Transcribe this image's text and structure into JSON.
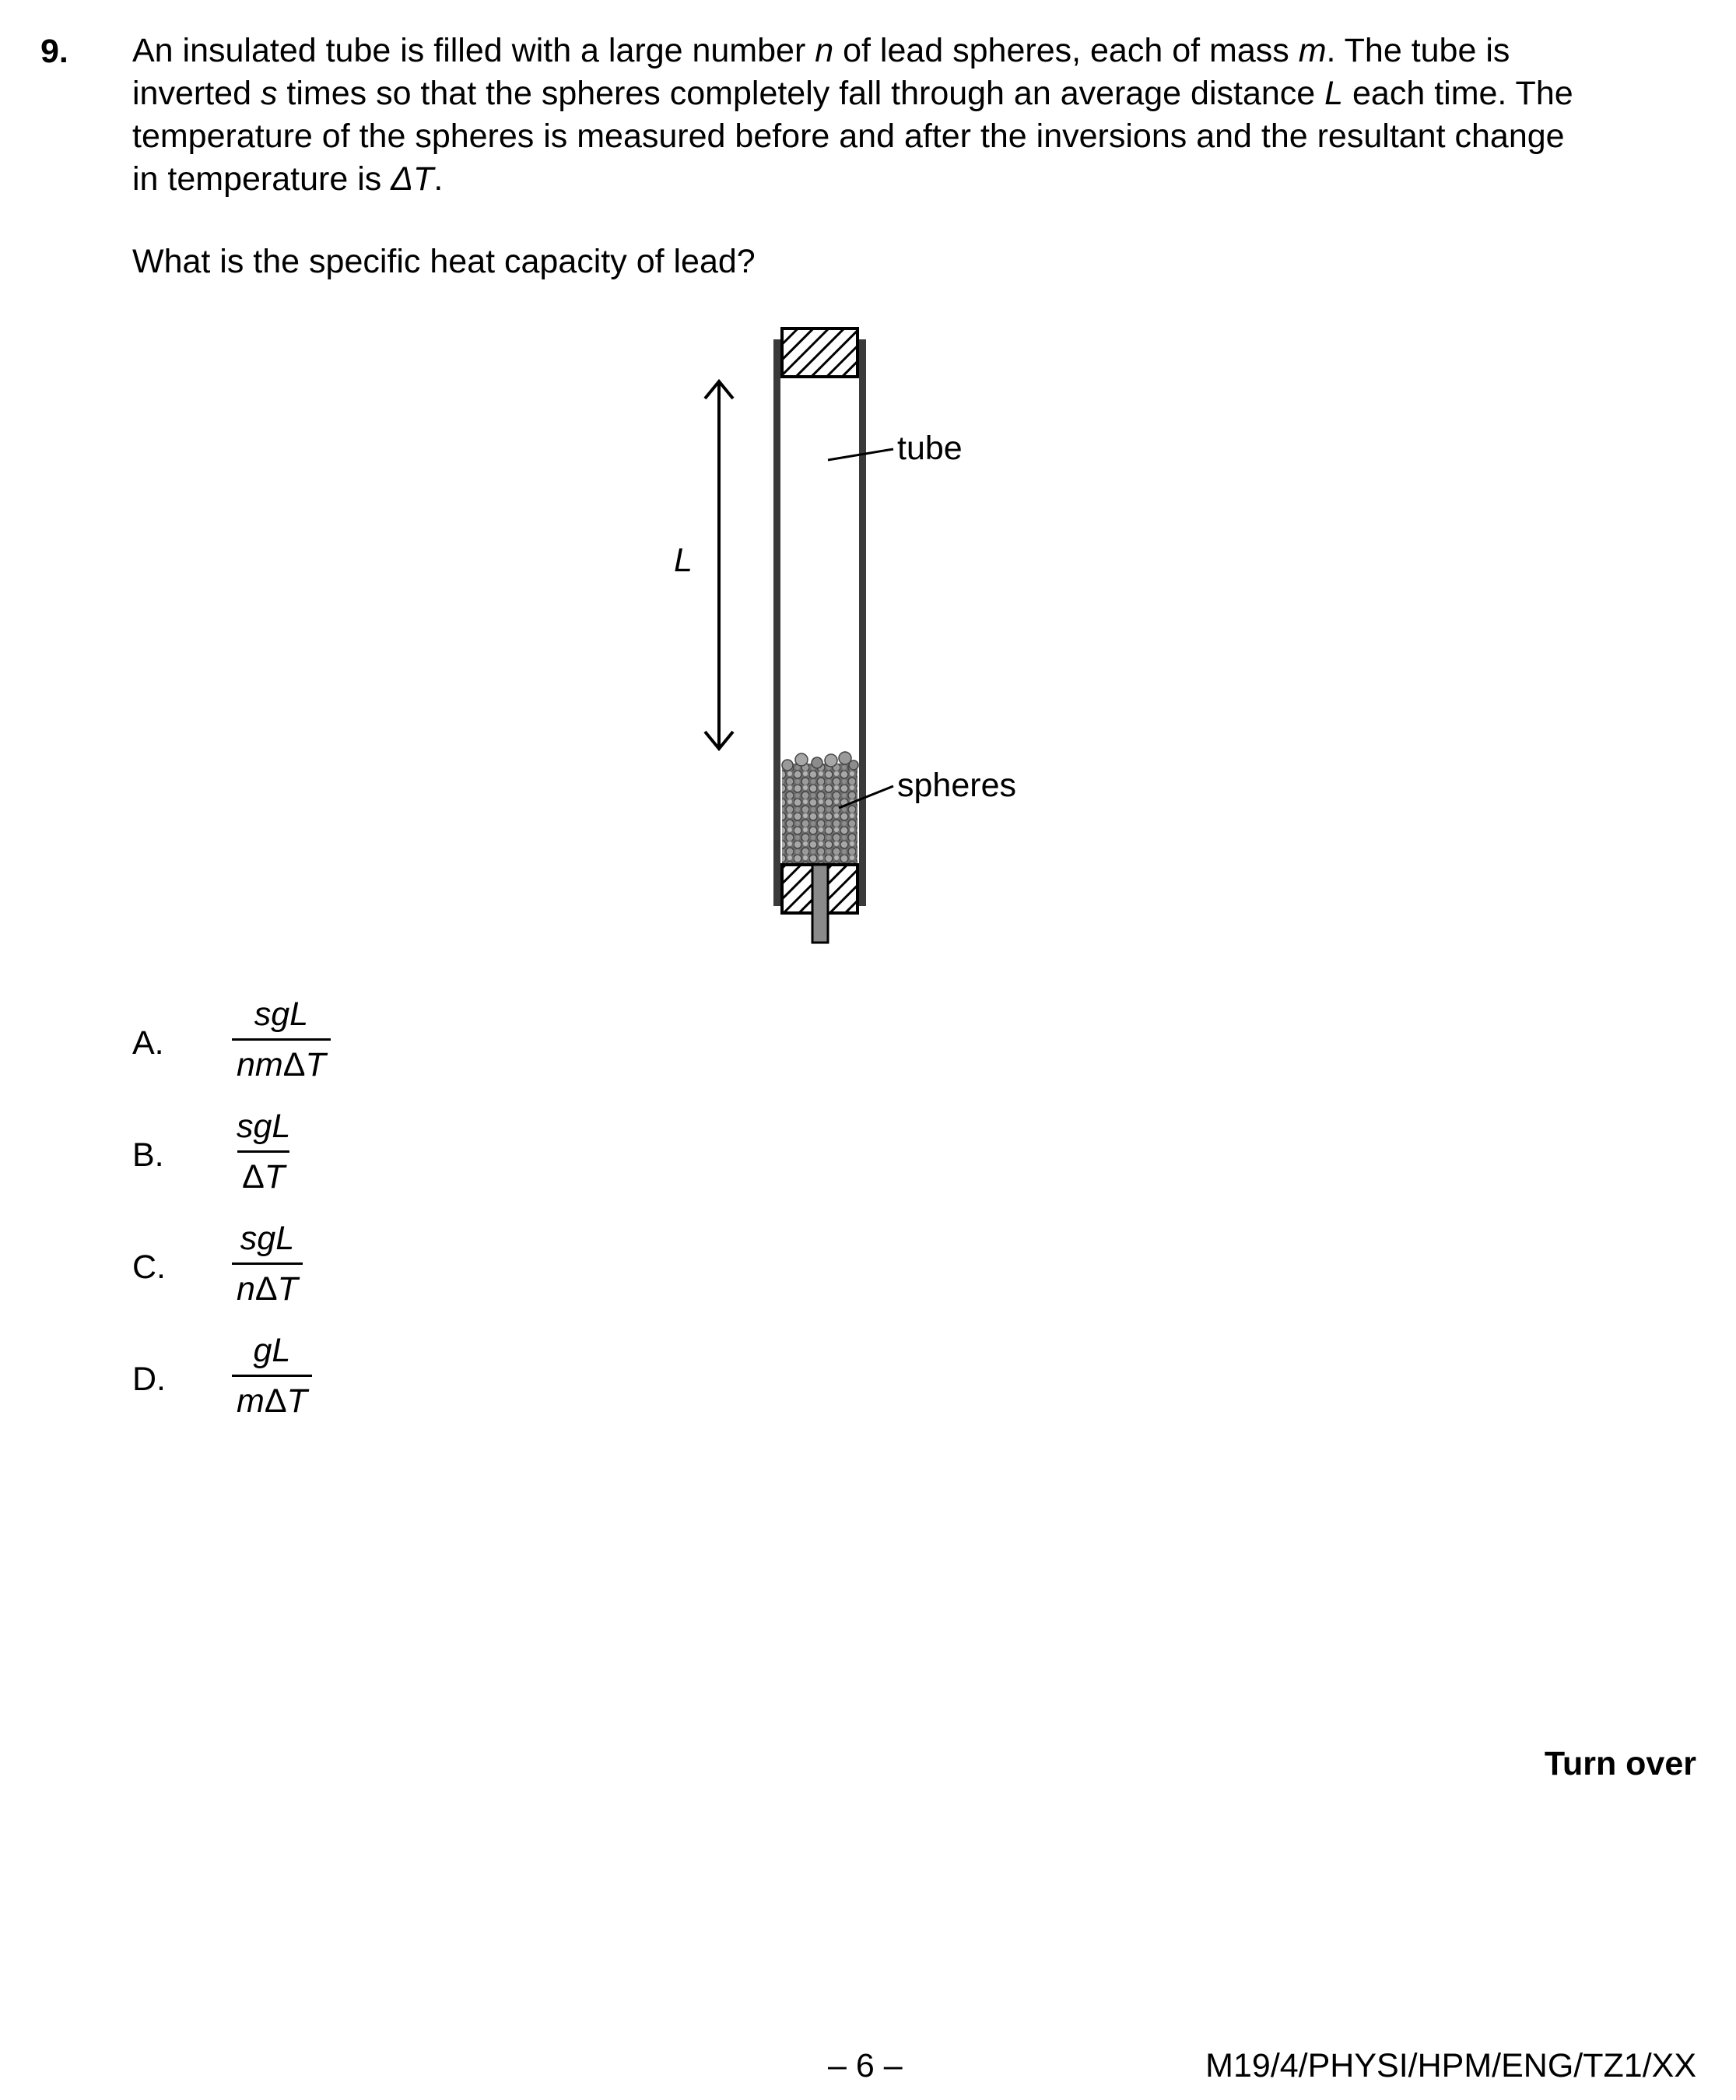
{
  "question": {
    "number": "9.",
    "stem_lines": [
      [
        "An insulated tube is filled with a large number ",
        "n",
        " of lead spheres, each of mass ",
        "m",
        ". The tube is"
      ],
      [
        "inverted ",
        "s",
        " times so that the spheres completely fall through an average distance ",
        "L",
        " each time. The"
      ],
      [
        "temperature of the spheres is measured before and after the inversions and the resultant change"
      ],
      [
        "in temperature is ",
        "ΔT",
        "."
      ]
    ],
    "prompt": "What is the specific heat capacity of lead?"
  },
  "diagram": {
    "label_length": "L",
    "label_tube": "tube",
    "label_spheres": "spheres"
  },
  "options": [
    {
      "letter": "A.",
      "numerator": "sgL",
      "denominator_pre": "nm",
      "denominator_post": "T"
    },
    {
      "letter": "B.",
      "numerator": "sgL",
      "denominator_pre": "",
      "denominator_post": "T"
    },
    {
      "letter": "C.",
      "numerator": "sgL",
      "denominator_pre": "n",
      "denominator_post": "T"
    },
    {
      "letter": "D.",
      "numerator": "gL",
      "denominator_pre": "m",
      "denominator_post": "T"
    }
  ],
  "delta_symbol": "Δ",
  "footer": {
    "turn_over": "Turn over",
    "page_number": "– 6 –",
    "doc_code": "M19/4/PHYSI/HPM/ENG/TZ1/XX"
  }
}
